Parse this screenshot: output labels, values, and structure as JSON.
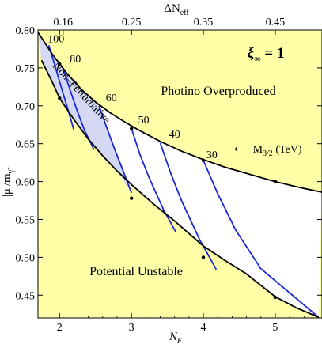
{
  "chart_data": {
    "type": "line",
    "xlabel": "N",
    "xlabel_sub": "F",
    "ylabel": "|μ|/m",
    "ylabel_sub": "γ̃",
    "top_xlabel": "ΔN",
    "top_xlabel_sub": "eff",
    "xlim": [
      1.7,
      5.65
    ],
    "ylim": [
      0.42,
      0.8
    ],
    "x_ticks": [
      2,
      3,
      4,
      5
    ],
    "x_tick_labels": [
      "2",
      "3",
      "4",
      "5"
    ],
    "y_ticks": [
      0.45,
      0.5,
      0.55,
      0.6,
      0.65,
      0.7,
      0.75,
      0.8
    ],
    "y_tick_labels": [
      "0.45",
      "0.50",
      "0.55",
      "0.60",
      "0.65",
      "0.70",
      "0.75",
      "0.80"
    ],
    "top_ticks": [
      {
        "at_NF": 2.05,
        "label": "0.16"
      },
      {
        "at_NF": 3.0,
        "label": "0.25"
      },
      {
        "at_NF": 4.0,
        "label": "0.35"
      },
      {
        "at_NF": 5.0,
        "label": "0.45"
      }
    ],
    "parameter_label": "ξ∞ = 1",
    "parameter_symbol": "ξ",
    "parameter_sub": "∞",
    "parameter_value": " = 1",
    "regions": {
      "upper": "Photino Overproduced",
      "lower": "Potential Unstable",
      "shaded": "Non–Perturbative"
    },
    "mass_arrow_label": "⟵ M",
    "mass_arrow_sub": "3/2",
    "mass_arrow_unit": " (TeV)",
    "colors": {
      "excluded_background": "#ffffa8",
      "allowed_region": "#ffffff",
      "nonperturbative_fill": "#d5d8f3",
      "contour_lines": "#1a28d8",
      "boundary_lines": "#000000"
    },
    "upper_boundary": {
      "x": [
        1.7,
        1.9,
        2.1,
        2.3,
        2.5,
        2.7,
        2.9,
        3.1,
        3.4,
        3.7,
        4.0,
        4.3,
        4.7,
        5.0,
        5.3,
        5.65
      ],
      "y": [
        0.797,
        0.768,
        0.743,
        0.722,
        0.705,
        0.691,
        0.679,
        0.668,
        0.653,
        0.64,
        0.629,
        0.619,
        0.608,
        0.6,
        0.593,
        0.586
      ]
    },
    "lower_boundary": {
      "x": [
        1.75,
        1.9,
        2.0,
        2.2,
        2.4,
        2.6,
        2.8,
        3.0,
        3.3,
        3.6,
        4.0,
        4.3,
        4.6,
        5.0,
        5.3,
        5.6
      ],
      "y": [
        0.76,
        0.731,
        0.71,
        0.682,
        0.656,
        0.634,
        0.614,
        0.596,
        0.571,
        0.548,
        0.515,
        0.496,
        0.478,
        0.448,
        0.433,
        0.421
      ]
    },
    "boundary_markers": {
      "upper": [
        {
          "x": 2.0,
          "y": 0.755
        },
        {
          "x": 3.0,
          "y": 0.67
        },
        {
          "x": 4.0,
          "y": 0.628
        },
        {
          "x": 5.0,
          "y": 0.6
        }
      ],
      "lower": [
        {
          "x": 2.0,
          "y": 0.71
        },
        {
          "x": 3.0,
          "y": 0.578
        },
        {
          "x": 4.0,
          "y": 0.5
        },
        {
          "x": 5.0,
          "y": 0.447
        }
      ]
    },
    "series": [
      {
        "name": "100",
        "x": [
          1.85,
          1.92,
          2.0,
          2.1,
          2.2
        ],
        "y": [
          0.78,
          0.758,
          0.732,
          0.7,
          0.668
        ]
      },
      {
        "name": "80",
        "x": [
          2.05,
          2.15,
          2.25,
          2.35,
          2.48
        ],
        "y": [
          0.749,
          0.72,
          0.692,
          0.667,
          0.642
        ]
      },
      {
        "name": "60",
        "x": [
          2.55,
          2.65,
          2.75,
          2.9,
          3.0
        ],
        "y": [
          0.7,
          0.673,
          0.647,
          0.61,
          0.585
        ]
      },
      {
        "name": "50",
        "x": [
          3.0,
          3.12,
          3.25,
          3.45,
          3.62
        ],
        "y": [
          0.67,
          0.635,
          0.604,
          0.562,
          0.533
        ]
      },
      {
        "name": "40",
        "x": [
          3.4,
          3.55,
          3.7,
          3.95,
          4.18
        ],
        "y": [
          0.651,
          0.61,
          0.574,
          0.523,
          0.484
        ]
      },
      {
        "name": "30",
        "x": [
          4.0,
          4.2,
          4.45,
          4.8,
          5.6
        ],
        "y": [
          0.628,
          0.584,
          0.536,
          0.485,
          0.421
        ]
      }
    ],
    "series_label_positions": [
      {
        "name": "100",
        "x": 1.95,
        "y": 0.784
      },
      {
        "name": "80",
        "x": 2.22,
        "y": 0.757
      },
      {
        "name": "60",
        "x": 2.72,
        "y": 0.706
      },
      {
        "name": "50",
        "x": 3.17,
        "y": 0.677
      },
      {
        "name": "40",
        "x": 3.6,
        "y": 0.658
      },
      {
        "name": "30",
        "x": 4.12,
        "y": 0.631
      }
    ]
  }
}
